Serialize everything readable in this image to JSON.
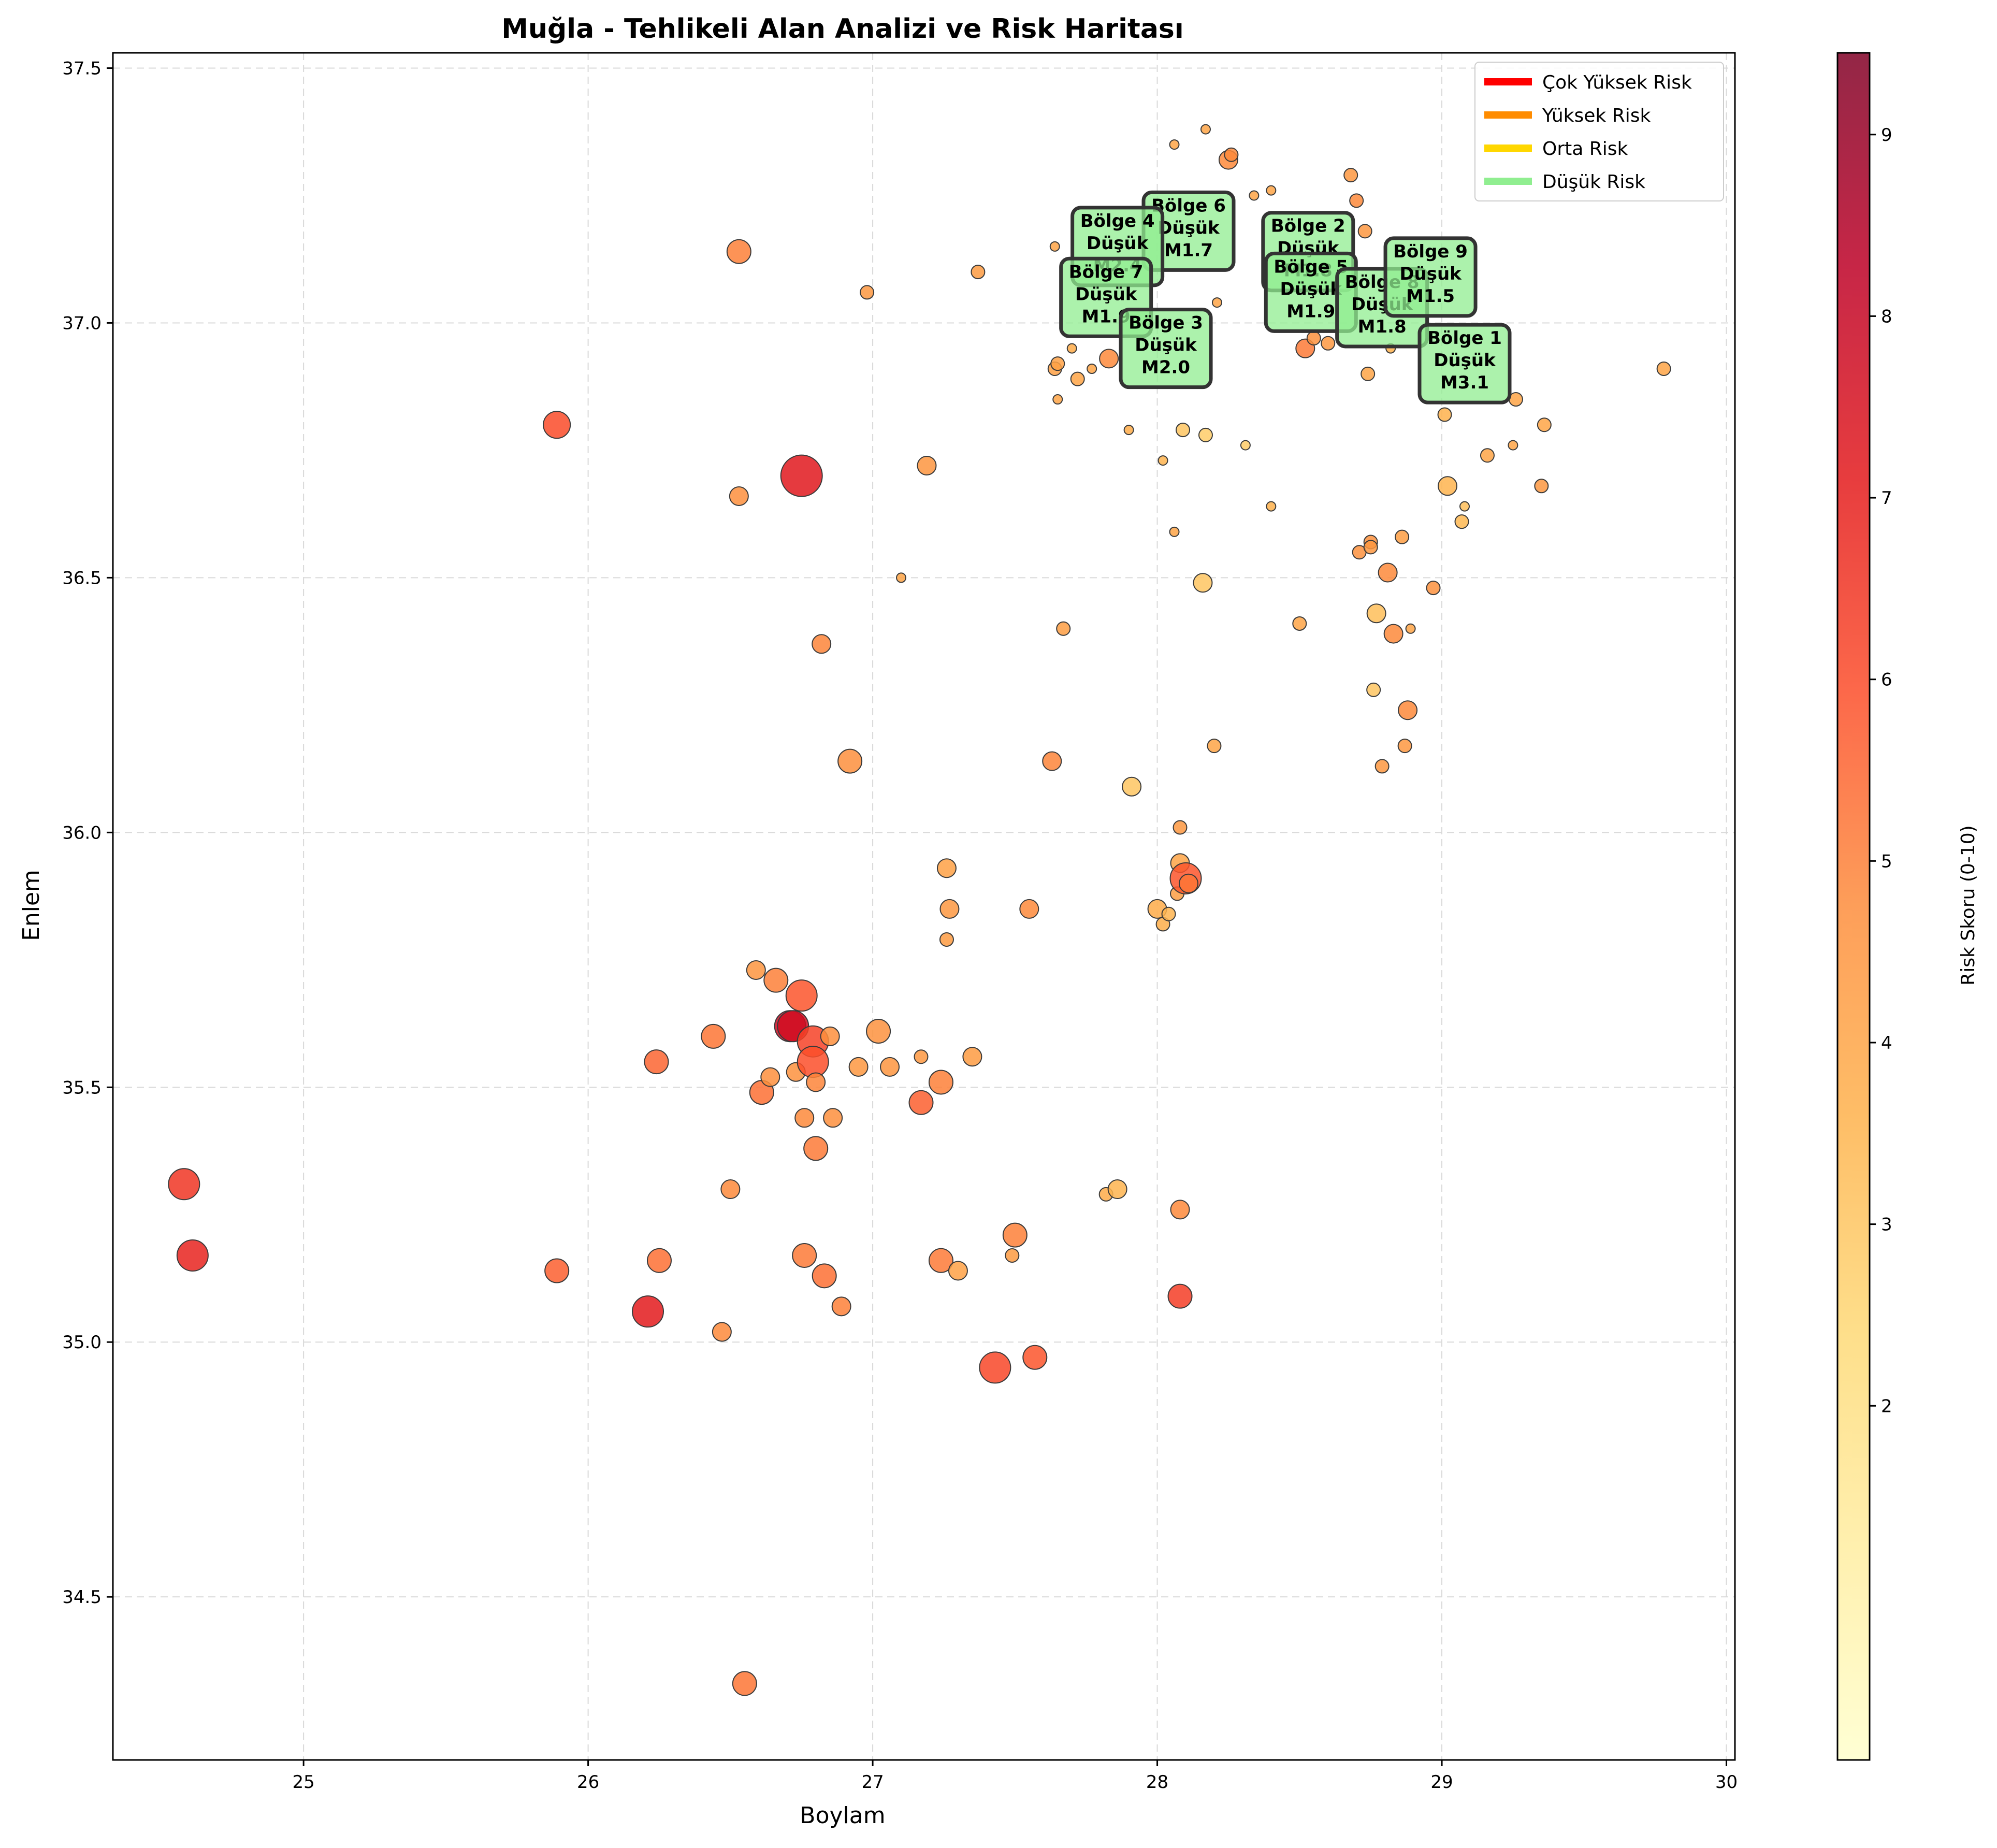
{
  "chart_data": {
    "type": "scatter",
    "title": "Muğla - Tehlikeli Alan Analizi ve Risk Haritası",
    "xlabel": "Boylam",
    "ylabel": "Enlem",
    "xlim": [
      24.33,
      30.03
    ],
    "ylim": [
      34.18,
      37.53
    ],
    "xticks": [
      25,
      26,
      27,
      28,
      29,
      30
    ],
    "yticks": [
      34.5,
      35.0,
      35.5,
      36.0,
      36.5,
      37.0,
      37.5
    ],
    "grid": true,
    "colorbar": {
      "label": "Risk Skoru (0-10)",
      "range": [
        0.05,
        9.45
      ],
      "ticks": [
        2,
        3,
        4,
        5,
        6,
        7,
        8,
        9
      ],
      "colormap": [
        "#ffffcc",
        "#ffeda0",
        "#fed976",
        "#feb24c",
        "#fd8d3c",
        "#fc4e2a",
        "#e31a1c",
        "#bd0026",
        "#800026"
      ]
    },
    "legend": {
      "position": "top-right",
      "entries": [
        {
          "label": "Çok Yüksek Risk",
          "color": "#ff0000"
        },
        {
          "label": "Yüksek Risk",
          "color": "#ff8c00"
        },
        {
          "label": "Orta Risk",
          "color": "#ffd700"
        },
        {
          "label": "Düşük Risk",
          "color": "#90ee90"
        }
      ]
    },
    "points": [
      [
        24.58,
        35.31,
        6.5,
        6
      ],
      [
        24.61,
        35.17,
        6.9,
        6
      ],
      [
        25.89,
        36.8,
        6.0,
        5
      ],
      [
        25.89,
        35.14,
        5.6,
        4
      ],
      [
        26.21,
        35.06,
        7.1,
        6
      ],
      [
        26.24,
        35.55,
        5.5,
        4
      ],
      [
        26.25,
        35.16,
        5.3,
        4
      ],
      [
        26.44,
        35.6,
        5.2,
        4
      ],
      [
        26.47,
        35.02,
        4.8,
        3
      ],
      [
        26.5,
        35.3,
        4.8,
        3
      ],
      [
        26.53,
        37.14,
        5.0,
        4
      ],
      [
        26.53,
        36.66,
        4.7,
        3
      ],
      [
        26.55,
        34.33,
        5.2,
        4
      ],
      [
        26.59,
        35.73,
        4.5,
        3
      ],
      [
        26.61,
        35.49,
        5.3,
        4
      ],
      [
        26.64,
        35.52,
        4.7,
        3
      ],
      [
        26.66,
        35.71,
        5.0,
        4
      ],
      [
        26.71,
        35.62,
        7.8,
        6
      ],
      [
        26.72,
        35.62,
        7.7,
        6
      ],
      [
        26.73,
        35.53,
        4.6,
        3
      ],
      [
        26.75,
        36.7,
        7.2,
        7
      ],
      [
        26.75,
        35.68,
        5.8,
        6
      ],
      [
        26.76,
        35.44,
        4.8,
        3
      ],
      [
        26.76,
        35.17,
        5.1,
        4
      ],
      [
        26.79,
        35.59,
        6.2,
        6
      ],
      [
        26.79,
        35.55,
        5.9,
        6
      ],
      [
        26.8,
        35.38,
        5.1,
        4
      ],
      [
        26.8,
        35.51,
        4.9,
        3
      ],
      [
        26.82,
        36.37,
        4.9,
        3
      ],
      [
        26.83,
        35.13,
        5.3,
        4
      ],
      [
        26.85,
        35.6,
        4.7,
        3
      ],
      [
        26.86,
        35.44,
        4.7,
        3
      ],
      [
        26.89,
        35.07,
        5.0,
        3
      ],
      [
        26.92,
        36.14,
        4.7,
        4
      ],
      [
        26.95,
        35.54,
        4.4,
        3
      ],
      [
        26.98,
        37.06,
        4.4,
        2
      ],
      [
        27.02,
        35.61,
        4.6,
        4
      ],
      [
        27.06,
        35.54,
        4.5,
        3
      ],
      [
        27.1,
        36.5,
        4.0,
        1
      ],
      [
        27.17,
        35.56,
        4.4,
        2
      ],
      [
        27.17,
        35.47,
        5.6,
        4
      ],
      [
        27.19,
        36.72,
        4.5,
        3
      ],
      [
        27.24,
        35.51,
        5.0,
        4
      ],
      [
        27.24,
        35.16,
        5.1,
        4
      ],
      [
        27.26,
        35.93,
        4.1,
        3
      ],
      [
        27.26,
        35.79,
        4.3,
        2
      ],
      [
        27.27,
        35.85,
        4.4,
        3
      ],
      [
        27.3,
        35.14,
        4.1,
        3
      ],
      [
        27.35,
        35.56,
        4.3,
        3
      ],
      [
        27.37,
        37.1,
        4.3,
        2
      ],
      [
        27.43,
        34.95,
        6.1,
        6
      ],
      [
        27.49,
        35.17,
        4.3,
        2
      ],
      [
        27.5,
        35.21,
        5.0,
        4
      ],
      [
        27.55,
        35.85,
        4.8,
        3
      ],
      [
        27.57,
        34.97,
        5.8,
        4
      ],
      [
        27.63,
        36.14,
        4.9,
        3
      ],
      [
        27.64,
        37.15,
        4.0,
        1
      ],
      [
        27.64,
        36.91,
        4.1,
        2
      ],
      [
        27.65,
        36.92,
        4.1,
        2
      ],
      [
        27.65,
        36.85,
        4.0,
        1
      ],
      [
        27.67,
        36.4,
        4.2,
        2
      ],
      [
        27.7,
        36.95,
        3.8,
        1
      ],
      [
        27.72,
        36.89,
        4.0,
        2
      ],
      [
        27.77,
        36.91,
        4.0,
        1
      ],
      [
        27.82,
        35.29,
        3.8,
        2
      ],
      [
        27.83,
        36.93,
        4.8,
        3
      ],
      [
        27.86,
        35.3,
        3.5,
        3
      ],
      [
        27.9,
        36.79,
        3.8,
        1
      ],
      [
        27.91,
        36.09,
        3.0,
        3
      ],
      [
        28.0,
        35.85,
        3.8,
        3
      ],
      [
        28.02,
        35.82,
        3.7,
        2
      ],
      [
        28.02,
        36.73,
        3.5,
        1
      ],
      [
        28.04,
        35.84,
        3.5,
        2
      ],
      [
        28.06,
        37.35,
        4.0,
        1
      ],
      [
        28.06,
        36.59,
        4.0,
        1
      ],
      [
        28.07,
        35.88,
        4.2,
        2
      ],
      [
        28.08,
        36.01,
        4.4,
        2
      ],
      [
        28.08,
        35.94,
        4.0,
        3
      ],
      [
        28.08,
        35.26,
        4.8,
        3
      ],
      [
        28.08,
        35.09,
        6.3,
        4
      ],
      [
        28.09,
        36.79,
        3.0,
        2
      ],
      [
        28.1,
        35.91,
        5.8,
        6
      ],
      [
        28.11,
        35.9,
        5.2,
        3
      ],
      [
        28.16,
        36.49,
        3.0,
        3
      ],
      [
        28.17,
        37.38,
        4.0,
        1
      ],
      [
        28.17,
        36.78,
        2.8,
        2
      ],
      [
        28.2,
        36.17,
        4.0,
        2
      ],
      [
        28.21,
        37.04,
        4.0,
        1
      ],
      [
        28.25,
        37.32,
        4.8,
        3
      ],
      [
        28.26,
        37.33,
        4.8,
        2
      ],
      [
        28.31,
        36.76,
        2.8,
        1
      ],
      [
        28.34,
        37.25,
        4.0,
        1
      ],
      [
        28.4,
        37.26,
        4.0,
        1
      ],
      [
        28.4,
        36.64,
        3.6,
        1
      ],
      [
        28.5,
        36.41,
        4.0,
        2
      ],
      [
        28.52,
        36.95,
        5.1,
        3
      ],
      [
        28.55,
        36.97,
        4.6,
        2
      ],
      [
        28.6,
        36.96,
        4.4,
        2
      ],
      [
        28.68,
        37.29,
        4.4,
        2
      ],
      [
        28.7,
        37.24,
        4.8,
        2
      ],
      [
        28.71,
        36.55,
        4.6,
        2
      ],
      [
        28.73,
        37.18,
        4.4,
        2
      ],
      [
        28.74,
        36.9,
        4.0,
        2
      ],
      [
        28.75,
        36.57,
        4.6,
        2
      ],
      [
        28.75,
        36.56,
        4.4,
        2
      ],
      [
        28.76,
        36.28,
        3.0,
        2
      ],
      [
        28.77,
        36.43,
        3.2,
        3
      ],
      [
        28.79,
        36.13,
        4.4,
        2
      ],
      [
        28.81,
        36.51,
        4.8,
        3
      ],
      [
        28.82,
        36.95,
        3.6,
        1
      ],
      [
        28.83,
        36.39,
        4.8,
        3
      ],
      [
        28.86,
        36.58,
        4.2,
        2
      ],
      [
        28.87,
        36.17,
        4.4,
        2
      ],
      [
        28.88,
        36.24,
        4.8,
        3
      ],
      [
        28.89,
        36.4,
        4.0,
        1
      ],
      [
        28.97,
        36.48,
        4.6,
        2
      ],
      [
        29.01,
        36.82,
        3.6,
        2
      ],
      [
        29.02,
        36.68,
        3.5,
        3
      ],
      [
        29.07,
        36.61,
        3.4,
        2
      ],
      [
        29.08,
        36.64,
        3.2,
        1
      ],
      [
        29.16,
        36.74,
        4.0,
        2
      ],
      [
        29.25,
        36.76,
        4.0,
        1
      ],
      [
        29.26,
        36.85,
        4.0,
        2
      ],
      [
        29.35,
        36.68,
        4.4,
        2
      ],
      [
        29.36,
        36.8,
        4.0,
        2
      ],
      [
        29.78,
        36.91,
        4.0,
        2
      ]
    ],
    "annotations": [
      {
        "lines": [
          "Bölge 6",
          "Düşük",
          "M1.7"
        ],
        "x": 28.11,
        "y": 37.18
      },
      {
        "lines": [
          "Bölge 4",
          "Düşük",
          "M2.4"
        ],
        "x": 27.86,
        "y": 37.15
      },
      {
        "lines": [
          "Bölge 7",
          "Düşük",
          "M1.9"
        ],
        "x": 27.82,
        "y": 37.05
      },
      {
        "lines": [
          "Bölge 3",
          "Düşük",
          "M2.0"
        ],
        "x": 28.03,
        "y": 36.95
      },
      {
        "lines": [
          "Bölge 2",
          "Düşük",
          "M1.8"
        ],
        "x": 28.53,
        "y": 37.14
      },
      {
        "lines": [
          "Bölge 5",
          "Düşük",
          "M1.9"
        ],
        "x": 28.54,
        "y": 37.06
      },
      {
        "lines": [
          "Bölge 8",
          "Düşük",
          "M1.8"
        ],
        "x": 28.79,
        "y": 37.03
      },
      {
        "lines": [
          "Bölge 9",
          "Düşük",
          "M1.5"
        ],
        "x": 28.96,
        "y": 37.09
      },
      {
        "lines": [
          "Bölge 1",
          "Düşük",
          "M3.1"
        ],
        "x": 29.08,
        "y": 36.92
      }
    ]
  }
}
